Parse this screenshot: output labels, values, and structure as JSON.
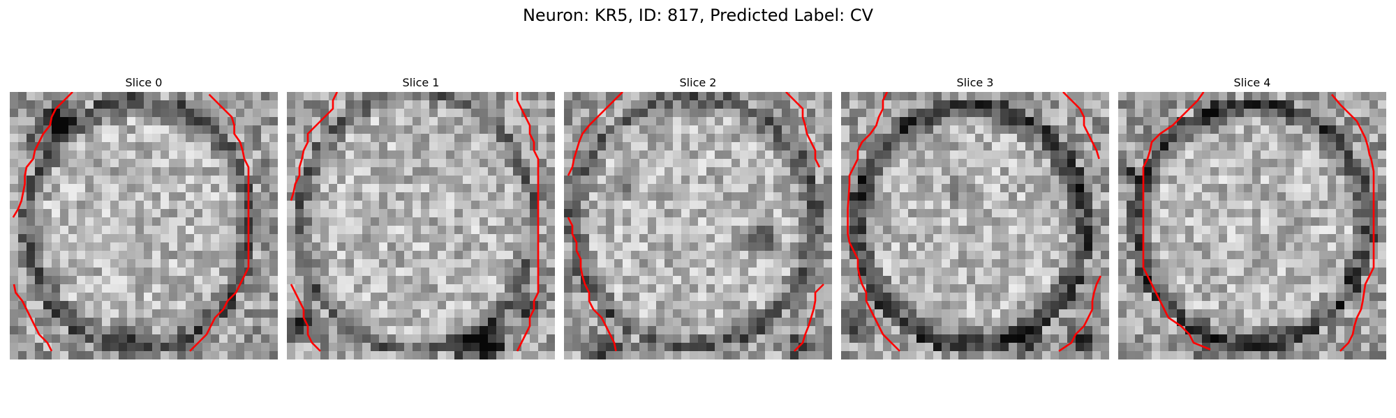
{
  "figure": {
    "title": "Neuron: KR5, ID: 817, Predicted Label: CV"
  },
  "slices": [
    {
      "title": "Slice 0"
    },
    {
      "title": "Slice 1"
    },
    {
      "title": "Slice 2"
    },
    {
      "title": "Slice 3"
    },
    {
      "title": "Slice 4"
    }
  ],
  "colors": {
    "contour": "#ff0000",
    "colormap": "gray"
  }
}
